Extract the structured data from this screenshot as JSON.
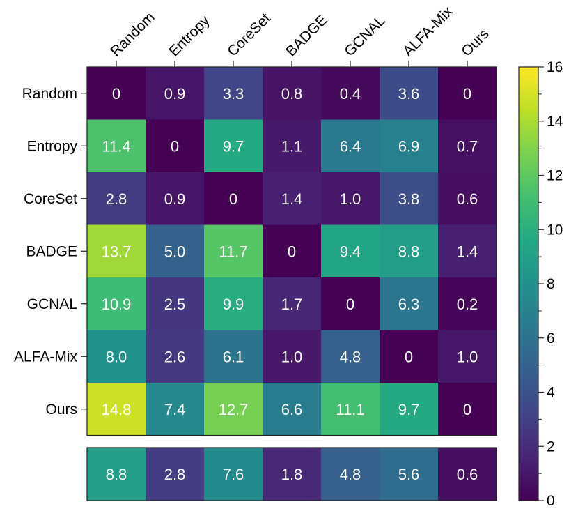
{
  "chart_data": {
    "type": "heatmap",
    "colormap": "viridis",
    "x_labels": [
      "Random",
      "Entropy",
      "CoreSet",
      "BADGE",
      "GCNAL",
      "ALFA-Mix",
      "Ours"
    ],
    "y_labels": [
      "Random",
      "Entropy",
      "CoreSet",
      "BADGE",
      "GCNAL",
      "ALFA-Mix",
      "Ours"
    ],
    "values": [
      [
        0,
        0.9,
        3.3,
        0.8,
        0.4,
        3.6,
        0
      ],
      [
        11.4,
        0,
        9.7,
        1.1,
        6.4,
        6.9,
        0.7
      ],
      [
        2.8,
        0.9,
        0,
        1.4,
        1.0,
        3.8,
        0.6
      ],
      [
        13.7,
        5.0,
        11.7,
        0,
        9.4,
        8.8,
        1.4
      ],
      [
        10.9,
        2.5,
        9.9,
        1.7,
        0,
        6.3,
        0.2
      ],
      [
        8.0,
        2.6,
        6.1,
        1.0,
        4.8,
        0,
        1.0
      ],
      [
        14.8,
        7.4,
        12.7,
        6.6,
        11.1,
        9.7,
        0
      ]
    ],
    "value_labels": [
      [
        "0",
        "0.9",
        "3.3",
        "0.8",
        "0.4",
        "3.6",
        "0"
      ],
      [
        "11.4",
        "0",
        "9.7",
        "1.1",
        "6.4",
        "6.9",
        "0.7"
      ],
      [
        "2.8",
        "0.9",
        "0",
        "1.4",
        "1.0",
        "3.8",
        "0.6"
      ],
      [
        "13.7",
        "5.0",
        "11.7",
        "0",
        "9.4",
        "8.8",
        "1.4"
      ],
      [
        "10.9",
        "2.5",
        "9.9",
        "1.7",
        "0",
        "6.3",
        "0.2"
      ],
      [
        "8.0",
        "2.6",
        "6.1",
        "1.0",
        "4.8",
        "0",
        "1.0"
      ],
      [
        "14.8",
        "7.4",
        "12.7",
        "6.6",
        "11.1",
        "9.7",
        "0"
      ]
    ],
    "summary_row": {
      "values": [
        8.8,
        2.8,
        7.6,
        1.8,
        4.8,
        5.6,
        0.6
      ],
      "labels": [
        "8.8",
        "2.8",
        "7.6",
        "1.8",
        "4.8",
        "5.6",
        "0.6"
      ]
    },
    "colorbar": {
      "range": [
        0,
        16
      ],
      "ticks": [
        "0",
        "2",
        "4",
        "6",
        "8",
        "10",
        "12",
        "14",
        "16"
      ]
    }
  }
}
